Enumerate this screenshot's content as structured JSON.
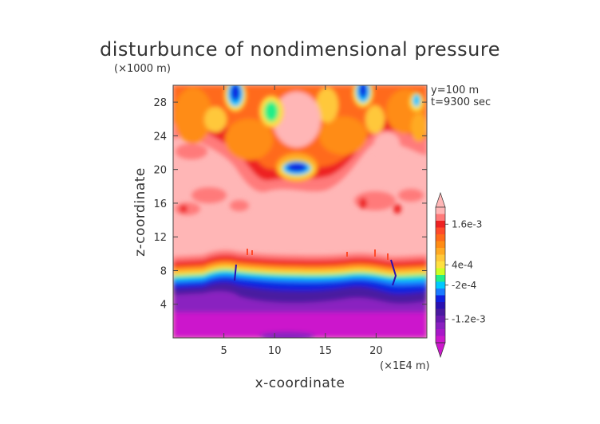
{
  "chart_data": {
    "type": "heatmap",
    "title": "disturbunce of nondimensional pressure",
    "xlabel": "x-coordinate",
    "ylabel": "z-coordinate",
    "x_unit": "(×1E4 m)",
    "y_unit": "(×1000 m)",
    "annotations": [
      "y=100 m",
      "t=9300 sec"
    ],
    "xlim": [
      0,
      25
    ],
    "ylim": [
      0,
      30
    ],
    "xticks": [
      5,
      10,
      15,
      20
    ],
    "yticks": [
      4,
      8,
      12,
      16,
      20,
      24,
      28
    ],
    "colorbar": {
      "labels": [
        {
          "text": "1.6e-3",
          "value": 0.0016
        },
        {
          "text": "4e-4",
          "value": 0.0004
        },
        {
          "text": "-2e-4",
          "value": -0.0002
        },
        {
          "text": "-1.2e-3",
          "value": -0.0012
        }
      ],
      "levels": [
        {
          "color": "#ffb6b6",
          "value": 0.002
        },
        {
          "color": "#ff7a7a",
          "value": 0.0018
        },
        {
          "color": "#ee2222",
          "value": 0.0016
        },
        {
          "color": "#ff4a2a",
          "value": 0.0014
        },
        {
          "color": "#ff6a1a",
          "value": 0.0012
        },
        {
          "color": "#ff8c14",
          "value": 0.001
        },
        {
          "color": "#ffaa22",
          "value": 0.0008
        },
        {
          "color": "#ffc83a",
          "value": 0.0006
        },
        {
          "color": "#ffe040",
          "value": 0.0004
        },
        {
          "color": "#ccff22",
          "value": 0.0002
        },
        {
          "color": "#22ee88",
          "value": 0.0
        },
        {
          "color": "#00c8ff",
          "value": -0.0002
        },
        {
          "color": "#1a7aff",
          "value": -0.0004
        },
        {
          "color": "#1020e0",
          "value": -0.0006
        },
        {
          "color": "#2a10b0",
          "value": -0.0008
        },
        {
          "color": "#4a1aa0",
          "value": -0.001
        },
        {
          "color": "#6a1ab0",
          "value": -0.0012
        },
        {
          "color": "#8a20c0",
          "value": -0.0014
        },
        {
          "color": "#a818c8",
          "value": -0.0016
        },
        {
          "color": "#cc18cc",
          "value": -0.0018
        }
      ]
    }
  }
}
